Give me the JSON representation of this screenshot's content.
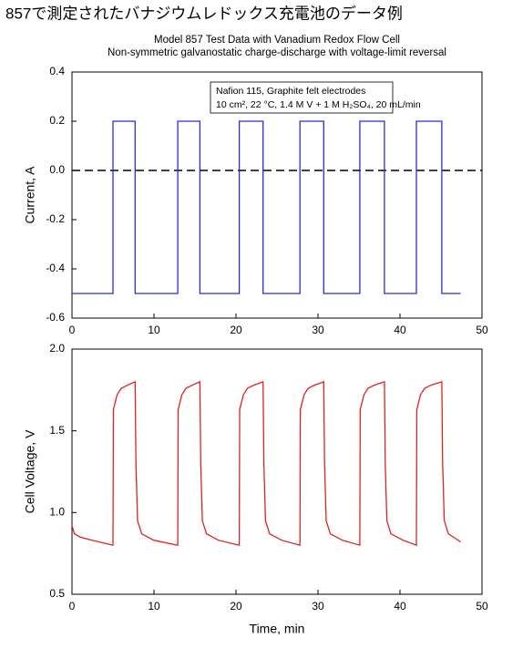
{
  "header": {
    "title": "857で測定されたバナジウムレドックス充電池のデータ例"
  },
  "chart_data": [
    {
      "type": "line",
      "title": "Model 857 Test Data with Vanadium Redox Flow Cell",
      "subtitle": "Non-symmetric galvanostatic charge-discharge with voltage-limit reversal",
      "annotation": [
        "Nafion 115, Graphite felt electrodes",
        "10 cm², 22 °C, 1.4 M V + 1 M H₂SO₄, 20 mL/min"
      ],
      "ylabel": "Current, A",
      "xlim": [
        0,
        50
      ],
      "xticks": [
        0,
        10,
        20,
        30,
        40,
        50
      ],
      "ylim": [
        -0.6,
        0.4
      ],
      "yticks": [
        -0.6,
        -0.4,
        -0.2,
        {
          "value": 0,
          "label": "0.0"
        },
        0.2,
        0.4
      ],
      "hline": 0,
      "hline_style": "dashed",
      "series": [
        {
          "color": "#2b2bd6",
          "x": [
            0,
            5.0,
            5.0,
            7.7,
            7.7,
            12.9,
            12.9,
            15.6,
            15.6,
            20.4,
            20.4,
            23.3,
            23.3,
            27.8,
            27.8,
            30.7,
            30.7,
            35.1,
            35.1,
            38.1,
            38.1,
            42.0,
            42.0,
            45.1,
            45.1,
            47.4
          ],
          "values": [
            -0.5,
            -0.5,
            0.2,
            0.2,
            -0.5,
            -0.5,
            0.2,
            0.2,
            -0.5,
            -0.5,
            0.2,
            0.2,
            -0.5,
            -0.5,
            0.2,
            0.2,
            -0.5,
            -0.5,
            0.2,
            0.2,
            -0.5,
            -0.5,
            0.2,
            0.2,
            -0.5,
            -0.5
          ]
        }
      ]
    },
    {
      "type": "line",
      "xlabel": "Time, min",
      "ylabel": "Cell Voltage, V",
      "xlim": [
        0,
        50
      ],
      "xticks": [
        0,
        10,
        20,
        30,
        40,
        50
      ],
      "ylim": [
        0.5,
        2.0
      ],
      "yticks": [
        0.5,
        {
          "value": 1,
          "label": "1.0"
        },
        1.5,
        {
          "value": 2,
          "label": "2.0"
        }
      ],
      "series": [
        {
          "color": "#e02020",
          "x": [
            0,
            0.3,
            1,
            2.5,
            5.0,
            5.05,
            5.5,
            6.0,
            6.8,
            7.7,
            7.8,
            8.0,
            8.5,
            10.0,
            12.9,
            12.95,
            13.4,
            13.9,
            14.7,
            15.6,
            15.7,
            15.9,
            16.4,
            17.9,
            20.4,
            20.45,
            20.9,
            21.4,
            22.2,
            23.3,
            23.4,
            23.6,
            24.1,
            25.6,
            27.8,
            27.85,
            28.3,
            28.8,
            29.6,
            30.7,
            30.8,
            31.0,
            31.5,
            33.0,
            35.1,
            35.15,
            35.6,
            36.1,
            36.9,
            38.1,
            38.2,
            38.4,
            38.9,
            40.4,
            42.0,
            42.05,
            42.5,
            43.0,
            43.8,
            45.1,
            45.2,
            45.4,
            45.9,
            47.4
          ],
          "values": [
            0.92,
            0.87,
            0.85,
            0.83,
            0.8,
            1.63,
            1.72,
            1.76,
            1.78,
            1.8,
            1.3,
            0.95,
            0.87,
            0.83,
            0.8,
            1.63,
            1.72,
            1.76,
            1.78,
            1.8,
            1.3,
            0.95,
            0.87,
            0.83,
            0.8,
            1.63,
            1.72,
            1.76,
            1.78,
            1.8,
            1.3,
            0.95,
            0.87,
            0.83,
            0.8,
            1.63,
            1.72,
            1.76,
            1.78,
            1.8,
            1.3,
            0.95,
            0.87,
            0.83,
            0.8,
            1.63,
            1.72,
            1.76,
            1.78,
            1.8,
            1.3,
            0.95,
            0.87,
            0.83,
            0.8,
            1.63,
            1.72,
            1.76,
            1.78,
            1.8,
            1.3,
            0.95,
            0.87,
            0.82
          ]
        }
      ]
    }
  ]
}
